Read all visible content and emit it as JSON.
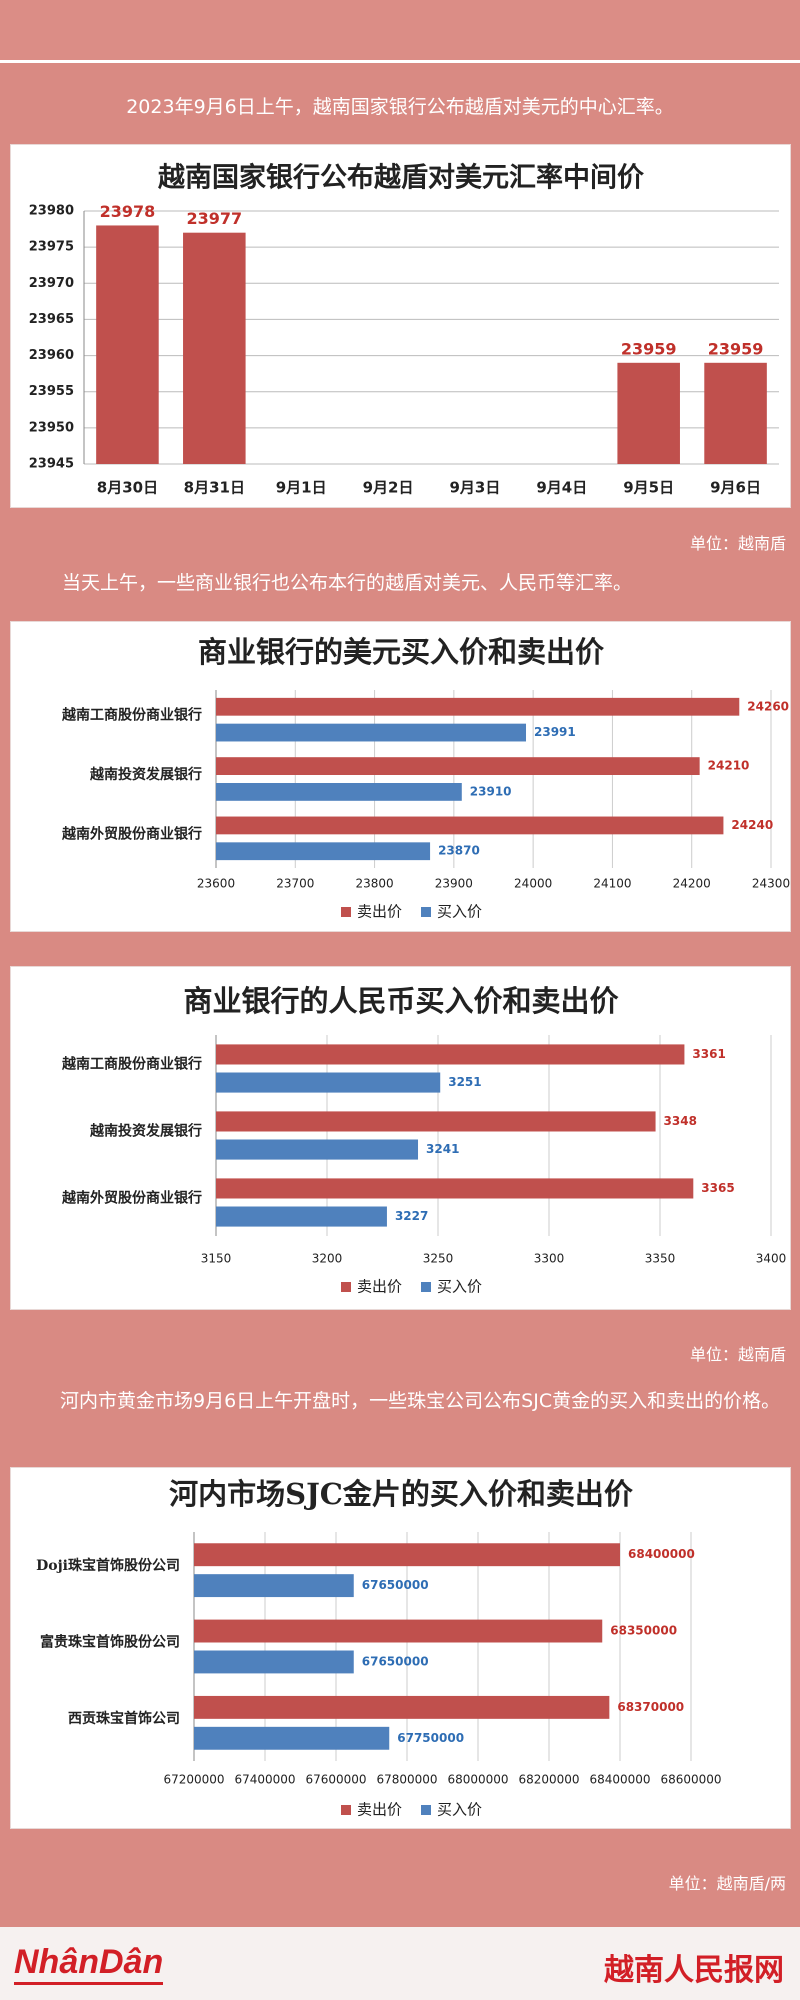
{
  "intro": "2023年9月6日上午，越南国家银行公布越盾对美元的中心汇率。",
  "unit_1": "单位：越南盾",
  "text_2": "当天上午，一些商业银行也公布本行的越盾对美元、人民币等汇率。",
  "unit_2": "单位：越南盾",
  "text_3": "河内市黄金市场9月6日上午开盘时，一些珠宝公司公布SJC黄金的买入和卖出的价格。",
  "unit_3": "单位：越南盾/两",
  "footer": {
    "logo_left": "NhânDân",
    "logo_right": "越南人民报网"
  },
  "chart_data": [
    {
      "type": "bar",
      "title": "越南国家银行公布越盾对美元汇率中间价",
      "categories": [
        "8月30日",
        "8月31日",
        "9月1日",
        "9月2日",
        "9月3日",
        "9月4日",
        "9月5日",
        "9月6日"
      ],
      "values": [
        23978,
        23977,
        null,
        null,
        null,
        null,
        23959,
        23959
      ],
      "color": "#c0504d",
      "ylim": [
        23945,
        23980
      ],
      "yticks": [
        23945,
        23950,
        23955,
        23960,
        23965,
        23970,
        23975,
        23980
      ],
      "grid": true
    },
    {
      "type": "barh",
      "title": "商业银行的美元买入价和卖出价",
      "categories": [
        "越南工商股份商业银行",
        "越南投资发展银行",
        "越南外贸股份商业银行"
      ],
      "series": [
        {
          "name": "卖出价",
          "color": "#c0504d",
          "values": [
            24260,
            24210,
            24240
          ]
        },
        {
          "name": "买入价",
          "color": "#4f81bd",
          "values": [
            23991,
            23910,
            23870
          ]
        }
      ],
      "xlim": [
        23600,
        24300
      ],
      "xticks": [
        23600,
        23700,
        23800,
        23900,
        24000,
        24100,
        24200,
        24300
      ],
      "grid": true,
      "legend": "bottom"
    },
    {
      "type": "barh",
      "title": "商业银行的人民币买入价和卖出价",
      "categories": [
        "越南工商股份商业银行",
        "越南投资发展银行",
        "越南外贸股份商业银行"
      ],
      "series": [
        {
          "name": "卖出价",
          "color": "#c0504d",
          "values": [
            3361,
            3348,
            3365
          ]
        },
        {
          "name": "买入价",
          "color": "#4f81bd",
          "values": [
            3251,
            3241,
            3227
          ]
        }
      ],
      "xlim": [
        3150,
        3400
      ],
      "xticks": [
        3150,
        3200,
        3250,
        3300,
        3350,
        3400
      ],
      "grid": true,
      "legend": "bottom"
    },
    {
      "type": "barh",
      "title": "河内市场SJC金片的买入价和卖出价",
      "categories": [
        "Doji珠宝首饰股份公司",
        "富贵珠宝首饰股份公司",
        "西贡珠宝首饰公司"
      ],
      "series": [
        {
          "name": "卖出价",
          "color": "#c0504d",
          "values": [
            68400000,
            68350000,
            68370000
          ]
        },
        {
          "name": "买入价",
          "color": "#4f81bd",
          "values": [
            67650000,
            67650000,
            67750000
          ]
        }
      ],
      "xlim": [
        67200000,
        68600000
      ],
      "xticks": [
        67200000,
        67400000,
        67600000,
        67800000,
        68000000,
        68200000,
        68400000,
        68600000
      ],
      "grid": true,
      "legend": "bottom"
    }
  ]
}
